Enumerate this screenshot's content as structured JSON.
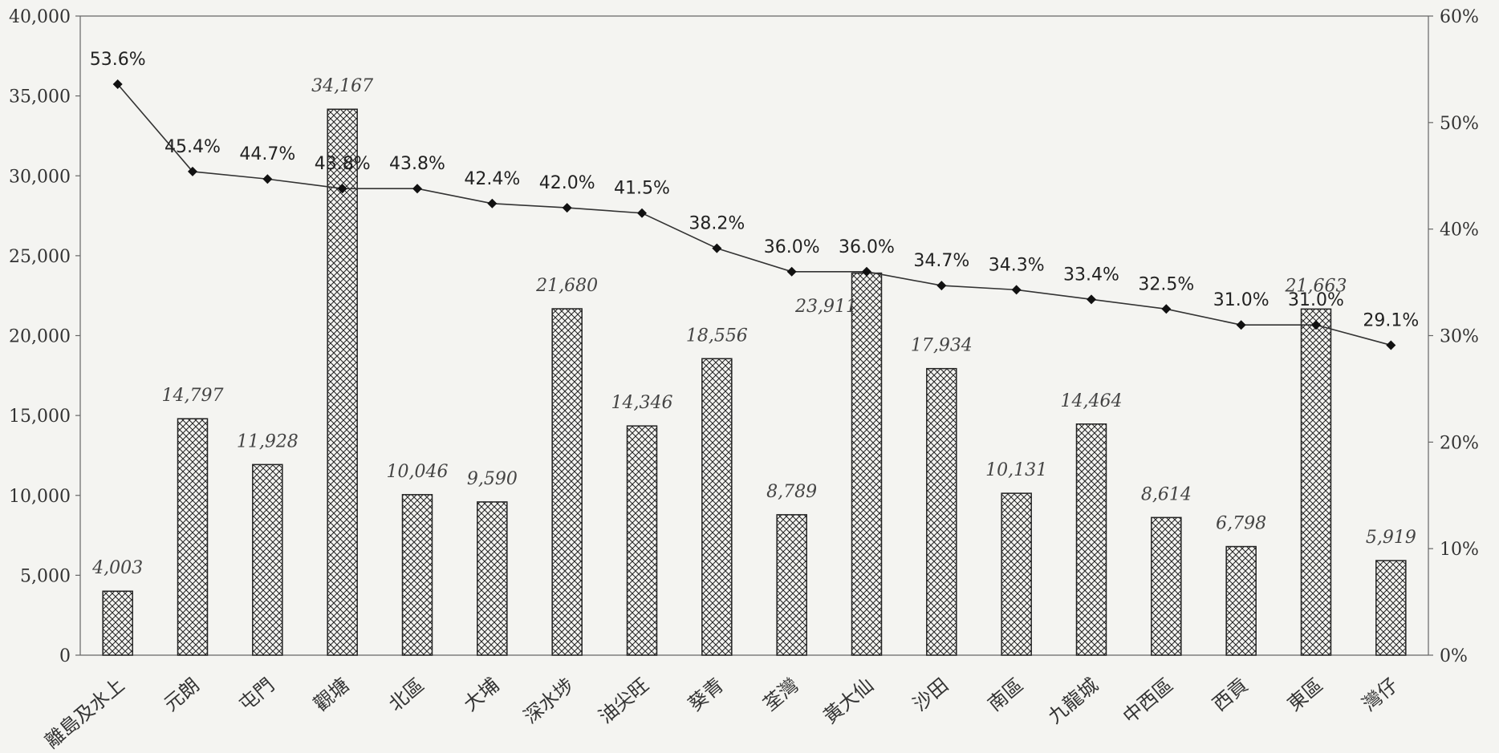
{
  "chart_data": {
    "type": "bar",
    "categories": [
      "離島及水上",
      "元朗",
      "屯門",
      "觀塘",
      "北區",
      "大埔",
      "深水埗",
      "油尖旺",
      "葵青",
      "荃灣",
      "黃大仙",
      "沙田",
      "南區",
      "九龍城",
      "中西區",
      "西貢",
      "東區",
      "灣仔"
    ],
    "series": [
      {
        "type": "bar",
        "axis": "left",
        "values": [
          4003,
          14797,
          11928,
          34167,
          10046,
          9590,
          21680,
          14346,
          18556,
          8789,
          23911,
          17934,
          10131,
          14464,
          8614,
          6798,
          21663,
          5919
        ],
        "labels": [
          "4,003",
          "14,797",
          "11,928",
          "34,167",
          "10,046",
          "9,590",
          "21,680",
          "14,346",
          "18,556",
          "8,789",
          "23,911",
          "17,934",
          "10,131",
          "14,464",
          "8,614",
          "6,798",
          "21,663",
          "5,919"
        ]
      },
      {
        "type": "line",
        "axis": "right",
        "values": [
          53.6,
          45.4,
          44.7,
          43.8,
          43.8,
          42.4,
          42.0,
          41.5,
          38.2,
          36.0,
          36.0,
          34.7,
          34.3,
          33.4,
          32.5,
          31.0,
          31.0,
          29.1
        ],
        "labels": [
          "53.6%",
          "45.4%",
          "44.7%",
          "43.8%",
          "43.8%",
          "42.4%",
          "42.0%",
          "41.5%",
          "38.2%",
          "36.0%",
          "36.0%",
          "34.7%",
          "34.3%",
          "33.4%",
          "32.5%",
          "31.0%",
          "31.0%",
          "29.1%"
        ]
      }
    ],
    "ylim_left": [
      0,
      40000
    ],
    "ylim_right": [
      0,
      60
    ],
    "left_ticks": [
      "0",
      "5,000",
      "10,000",
      "15,000",
      "20,000",
      "25,000",
      "30,000",
      "35,000",
      "40,000"
    ],
    "right_ticks": [
      "0%",
      "10%",
      "20%",
      "30%",
      "40%",
      "50%",
      "60%"
    ],
    "grid": false,
    "legend": "none",
    "colors": {
      "bar_fill_hatch": "#222222",
      "bar_bg": "#f4f4f1",
      "line": "#333333",
      "marker": "#111111"
    }
  }
}
